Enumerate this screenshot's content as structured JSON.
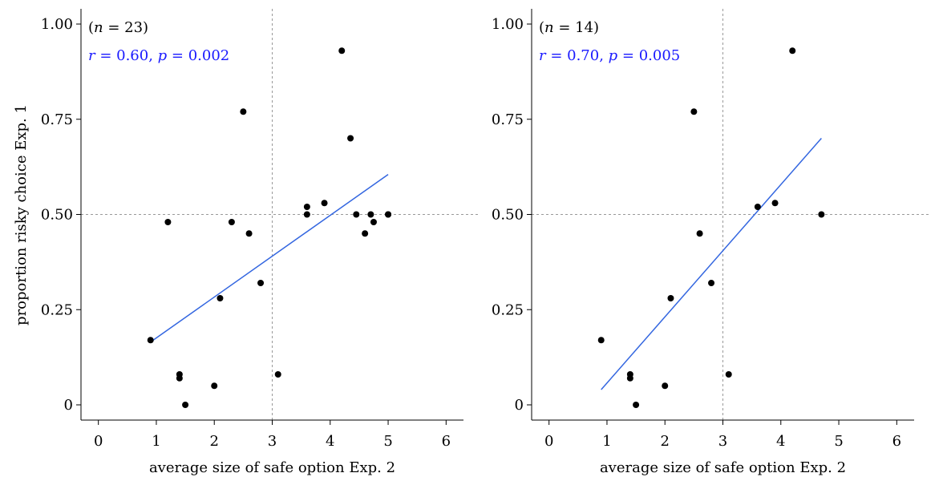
{
  "figure": {
    "shared_ylabel": "proportion risky choice Exp. 1",
    "colors": {
      "points": "#000000",
      "fit_line": "#3366e0",
      "annotation_stats": "#1a1aff",
      "reference_lines": "#999999"
    }
  },
  "chart_data": [
    {
      "type": "scatter",
      "xlabel": "average size of safe option Exp. 2",
      "ylabel": "proportion risky choice Exp. 1",
      "xlim": [
        -0.3,
        6.3
      ],
      "ylim": [
        -0.04,
        1.04
      ],
      "xticks": [
        0,
        1,
        2,
        3,
        4,
        5,
        6
      ],
      "xtick_labels": [
        "0",
        "1",
        "2",
        "3",
        "4",
        "5",
        "6"
      ],
      "yticks": [
        0,
        0.25,
        0.5,
        0.75,
        1.0
      ],
      "ytick_labels": [
        "0",
        "0.25",
        "0.50",
        "0.75",
        "1.00"
      ],
      "reference_lines": {
        "x": 3,
        "y": 0.5
      },
      "annotation": {
        "n_prefix": "(",
        "n_symbol": "n",
        "n_value": " = 23)",
        "r_symbol": "r",
        "r_value": " = 0.60, ",
        "p_symbol": "p",
        "p_value": " = 0.002"
      },
      "points": [
        {
          "x": 0.9,
          "y": 0.17
        },
        {
          "x": 1.2,
          "y": 0.48
        },
        {
          "x": 1.4,
          "y": 0.08
        },
        {
          "x": 1.4,
          "y": 0.07
        },
        {
          "x": 1.5,
          "y": 0.0
        },
        {
          "x": 2.0,
          "y": 0.05
        },
        {
          "x": 2.1,
          "y": 0.28
        },
        {
          "x": 2.3,
          "y": 0.48
        },
        {
          "x": 2.5,
          "y": 0.77
        },
        {
          "x": 2.6,
          "y": 0.45
        },
        {
          "x": 2.8,
          "y": 0.32
        },
        {
          "x": 3.1,
          "y": 0.08
        },
        {
          "x": 3.6,
          "y": 0.52
        },
        {
          "x": 3.6,
          "y": 0.5
        },
        {
          "x": 3.9,
          "y": 0.53
        },
        {
          "x": 4.2,
          "y": 0.93
        },
        {
          "x": 4.35,
          "y": 0.7
        },
        {
          "x": 4.45,
          "y": 0.5
        },
        {
          "x": 4.6,
          "y": 0.45
        },
        {
          "x": 4.7,
          "y": 0.5
        },
        {
          "x": 4.75,
          "y": 0.48
        },
        {
          "x": 5.0,
          "y": 0.5
        },
        {
          "x": 5.0,
          "y": 0.5
        }
      ],
      "fit_line": {
        "x": [
          0.9,
          5.0
        ],
        "y": [
          0.165,
          0.605
        ]
      }
    },
    {
      "type": "scatter",
      "xlabel": "average size of safe option Exp. 2",
      "ylabel": "",
      "xlim": [
        -0.3,
        6.3
      ],
      "ylim": [
        -0.04,
        1.04
      ],
      "xticks": [
        0,
        1,
        2,
        3,
        4,
        5,
        6
      ],
      "xtick_labels": [
        "0",
        "1",
        "2",
        "3",
        "4",
        "5",
        "6"
      ],
      "yticks": [
        0,
        0.25,
        0.5,
        0.75,
        1.0
      ],
      "ytick_labels": [
        "0",
        "0.25",
        "0.50",
        "0.75",
        "1.00"
      ],
      "reference_lines": {
        "x": 3,
        "y": 0.5
      },
      "annotation": {
        "n_prefix": "(",
        "n_symbol": "n",
        "n_value": " = 14)",
        "r_symbol": "r",
        "r_value": " = 0.70, ",
        "p_symbol": "p",
        "p_value": " = 0.005"
      },
      "points": [
        {
          "x": 0.9,
          "y": 0.17
        },
        {
          "x": 1.4,
          "y": 0.08
        },
        {
          "x": 1.4,
          "y": 0.07
        },
        {
          "x": 1.5,
          "y": 0.0
        },
        {
          "x": 2.0,
          "y": 0.05
        },
        {
          "x": 2.1,
          "y": 0.28
        },
        {
          "x": 2.5,
          "y": 0.77
        },
        {
          "x": 2.6,
          "y": 0.45
        },
        {
          "x": 2.8,
          "y": 0.32
        },
        {
          "x": 3.1,
          "y": 0.08
        },
        {
          "x": 3.6,
          "y": 0.52
        },
        {
          "x": 3.9,
          "y": 0.53
        },
        {
          "x": 4.2,
          "y": 0.93
        },
        {
          "x": 4.7,
          "y": 0.5
        }
      ],
      "fit_line": {
        "x": [
          0.9,
          4.7
        ],
        "y": [
          0.04,
          0.7
        ]
      }
    }
  ]
}
